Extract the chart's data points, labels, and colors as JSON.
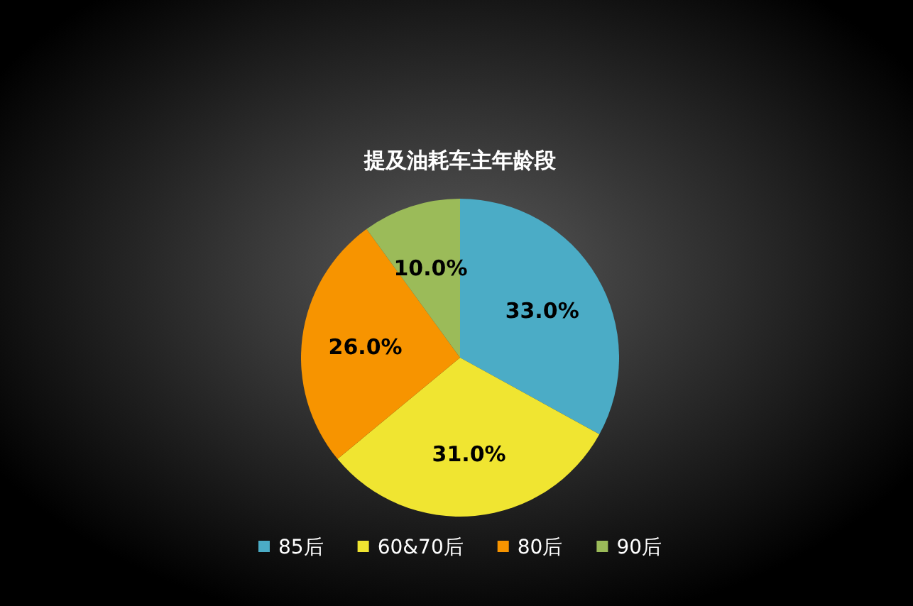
{
  "chart_data": {
    "type": "pie",
    "title": "提及油耗车主年龄段",
    "categories": [
      "85后",
      "60&70后",
      "80后",
      "90后"
    ],
    "values": [
      33.0,
      31.0,
      26.0,
      10.0
    ],
    "colors": [
      "#4bacc6",
      "#f0e531",
      "#f79400",
      "#9bbb59"
    ],
    "value_labels": [
      "33.0%",
      "31.0%",
      "26.0%",
      "10.0%"
    ],
    "legend": "bottom"
  }
}
